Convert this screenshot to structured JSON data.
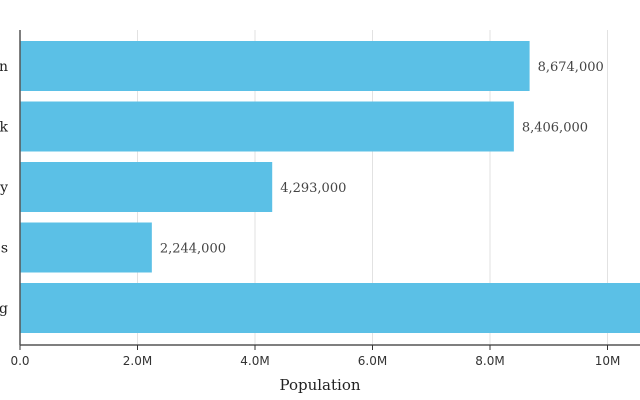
{
  "chart_data": {
    "type": "bar",
    "orientation": "horizontal",
    "title": "",
    "xlabel": "Population",
    "ylabel": "",
    "categories": [
      "n",
      "k",
      "y",
      "s",
      "g"
    ],
    "values": [
      8674000,
      8406000,
      4293000,
      2244000,
      null
    ],
    "value_labels": [
      "8,674,000",
      "8,406,000",
      "4,293,000",
      "2,244,000",
      ""
    ],
    "xlim": [
      0,
      10600000
    ],
    "x_ticks": [
      0,
      2000000,
      4000000,
      6000000,
      8000000,
      10000000
    ],
    "x_tick_labels": [
      "0.0",
      "2.0M",
      "4.0M",
      "6.0M",
      "8.0M",
      "10M"
    ],
    "last_bar_exceeds_axis": true,
    "grid": "vertical",
    "bar_color": "#5bc0e6",
    "legend": "none"
  }
}
